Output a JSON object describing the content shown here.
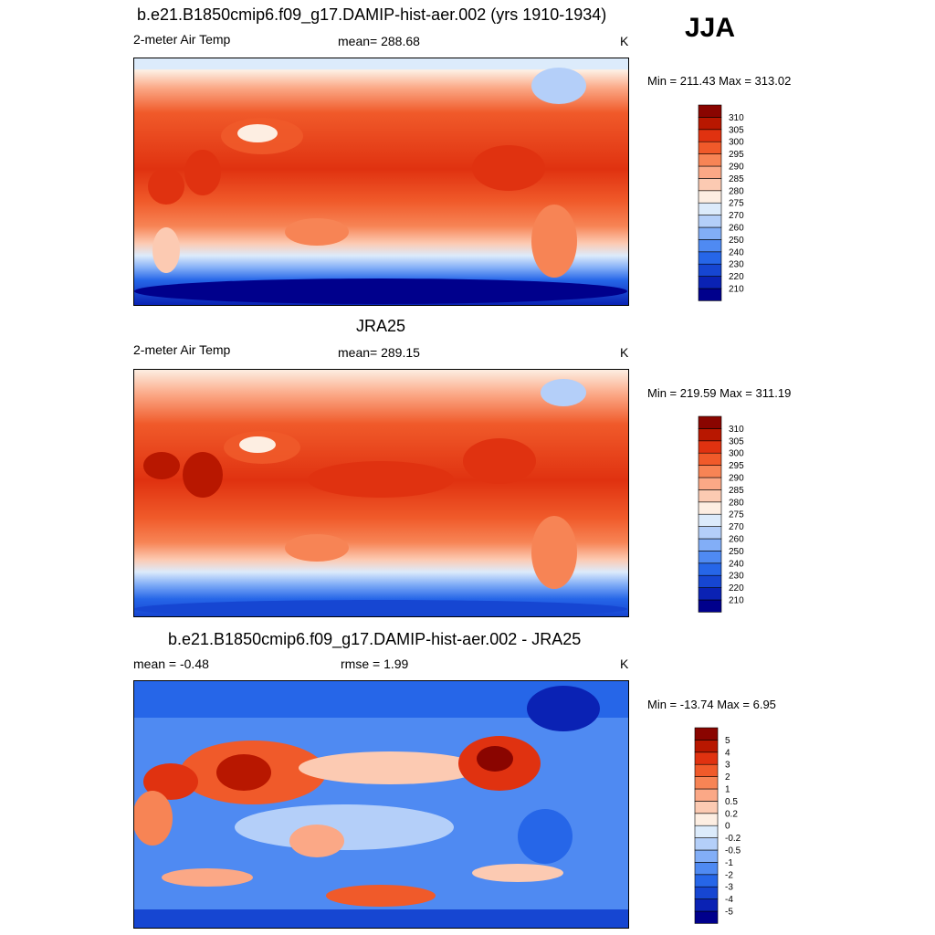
{
  "season": "JJA",
  "panels": [
    {
      "title": "b.e21.B1850cmip6.f09_g17.DAMIP-hist-aer.002 (yrs 1910-1934)",
      "left_label": "2-meter Air Temp",
      "center_label": "mean= 288.68",
      "unit": "K",
      "minmax": "Min = 211.43 Max = 313.02",
      "colorbar": {
        "colors": [
          "#00008c",
          "#0a22b4",
          "#1646d2",
          "#2666e8",
          "#4f8af2",
          "#82aef7",
          "#b4cff9",
          "#dcebfb",
          "#fdeee2",
          "#fccab2",
          "#fba886",
          "#f78455",
          "#f05a2a",
          "#e03210",
          "#b81700",
          "#8a0500"
        ],
        "labels": [
          "210",
          "220",
          "230",
          "240",
          "250",
          "260",
          "270",
          "275",
          "280",
          "285",
          "290",
          "295",
          "300",
          "305",
          "310"
        ]
      }
    },
    {
      "title": "JRA25",
      "left_label": "2-meter Air Temp",
      "center_label": "mean= 289.15",
      "unit": "K",
      "minmax": "Min = 219.59 Max = 311.19",
      "colorbar": {
        "colors": [
          "#00008c",
          "#0a22b4",
          "#1646d2",
          "#2666e8",
          "#4f8af2",
          "#82aef7",
          "#b4cff9",
          "#dcebfb",
          "#fdeee2",
          "#fccab2",
          "#fba886",
          "#f78455",
          "#f05a2a",
          "#e03210",
          "#b81700",
          "#8a0500"
        ],
        "labels": [
          "210",
          "220",
          "230",
          "240",
          "250",
          "260",
          "270",
          "275",
          "280",
          "285",
          "290",
          "295",
          "300",
          "305",
          "310"
        ]
      }
    },
    {
      "title": "b.e21.B1850cmip6.f09_g17.DAMIP-hist-aer.002 - JRA25",
      "left_label": "mean =  -0.48",
      "center_label": "rmse =   1.99",
      "unit": "K",
      "minmax": "Min = -13.74 Max =   6.95",
      "colorbar": {
        "colors": [
          "#00008c",
          "#0a22b4",
          "#1646d2",
          "#2666e8",
          "#4f8af2",
          "#82aef7",
          "#b4cff9",
          "#dcebfb",
          "#fdeee2",
          "#fccab2",
          "#fba886",
          "#f78455",
          "#f05a2a",
          "#e03210",
          "#b81700",
          "#8a0500"
        ],
        "labels": [
          "-5",
          "-4",
          "-3",
          "-2",
          "-1",
          "-0.5",
          "-0.2",
          "0",
          "0.2",
          "0.5",
          "1",
          "2",
          "3",
          "4",
          "5"
        ]
      }
    }
  ]
}
